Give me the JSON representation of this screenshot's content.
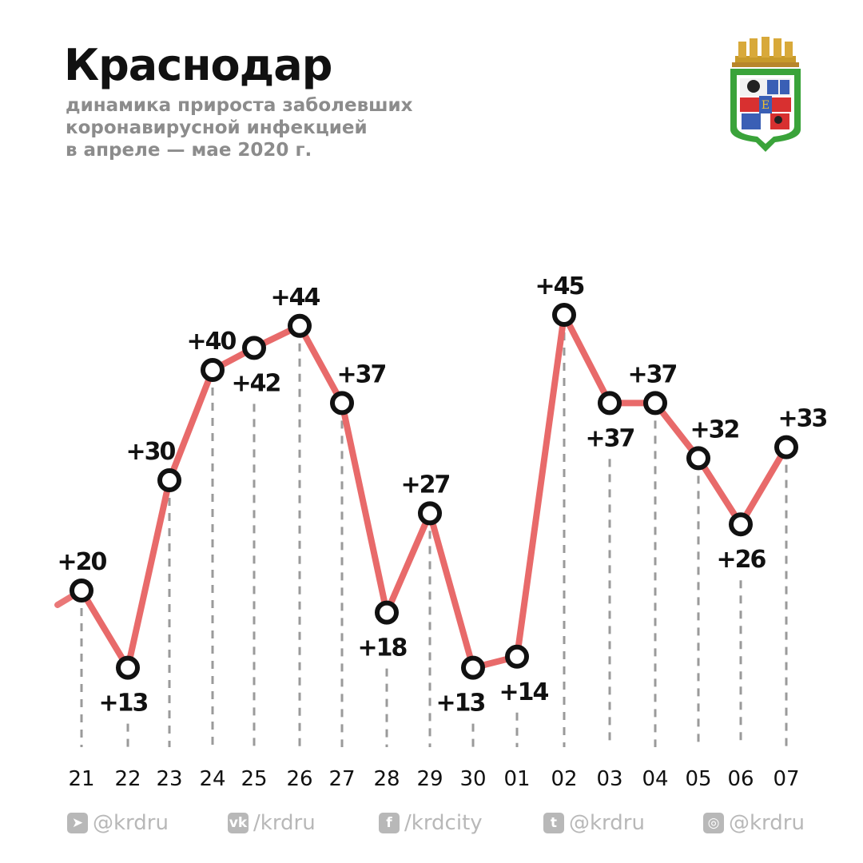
{
  "header": {
    "title": "Краснодар",
    "subtitle_lines": [
      "динамика прироста заболевших",
      "коронавирусной инфекцией",
      "в апреле — мае 2020 г."
    ]
  },
  "colors": {
    "line": "#e86a6a",
    "marker_stroke": "#111111",
    "marker_fill": "#ffffff",
    "grid": "#9a9a9a",
    "social": "#b8b8b8"
  },
  "chart_data": {
    "type": "line",
    "categories": [
      "21",
      "22",
      "23",
      "24",
      "25",
      "26",
      "27",
      "28",
      "29",
      "30",
      "01",
      "02",
      "03",
      "04",
      "05",
      "06",
      "07"
    ],
    "values": [
      20,
      13,
      30,
      40,
      42,
      44,
      37,
      18,
      27,
      13,
      14,
      45,
      37,
      37,
      32,
      26,
      33
    ],
    "data_labels": [
      "+20",
      "+13",
      "+30",
      "+40",
      "+42",
      "+44",
      "+37",
      "+18",
      "+27",
      "+13",
      "+14",
      "+45",
      "+37",
      "+37",
      "+32",
      "+26",
      "+33"
    ],
    "title": "Краснодар",
    "xlabel": "",
    "ylabel": "",
    "grid": "vertical dashed",
    "legend": "none"
  },
  "social": [
    {
      "icon": "telegram-icon",
      "glyph": "➤",
      "label": "@krdru"
    },
    {
      "icon": "vk-icon",
      "glyph": "vk",
      "label": "/krdru"
    },
    {
      "icon": "facebook-icon",
      "glyph": "f",
      "label": "/krdcity"
    },
    {
      "icon": "twitter-icon",
      "glyph": "t",
      "label": "@krdru"
    },
    {
      "icon": "instagram-icon",
      "glyph": "◎",
      "label": "@krdru"
    }
  ]
}
